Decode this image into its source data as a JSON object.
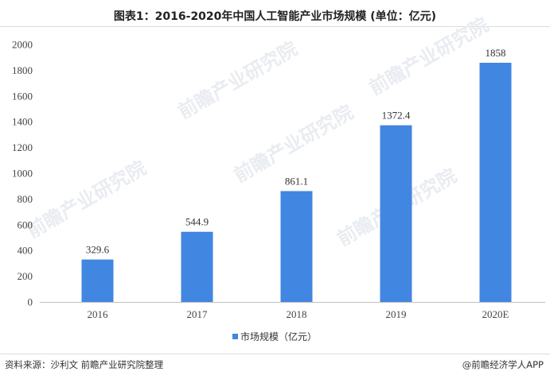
{
  "header": {
    "title": "图表1：2016-2020年中国人工智能产业市场规模 (单位：亿元)"
  },
  "footer": {
    "source": "资料来源：沙利文 前瞻产业研究院整理",
    "credit": "@前瞻经济学人APP"
  },
  "watermark": {
    "text": "前瞻产业研究院"
  },
  "chart_data": {
    "type": "bar",
    "title": "图表1：2016-2020年中国人工智能产业市场规模 (单位：亿元)",
    "categories": [
      "2016",
      "2017",
      "2018",
      "2019",
      "2020E"
    ],
    "series": [
      {
        "name": "市场规模（亿元）",
        "values": [
          329.6,
          544.9,
          861.1,
          1372.4,
          1858
        ],
        "labels": [
          "329.6",
          "544.9",
          "861.1",
          "1372.4",
          "1858"
        ],
        "color": "#4186e0"
      }
    ],
    "xlabel": "",
    "ylabel": "",
    "ylim": [
      0,
      2000
    ],
    "yticks": [
      0,
      200,
      400,
      600,
      800,
      1000,
      1200,
      1400,
      1600,
      1800,
      2000
    ],
    "grid": false,
    "legend": "bottom-center"
  }
}
